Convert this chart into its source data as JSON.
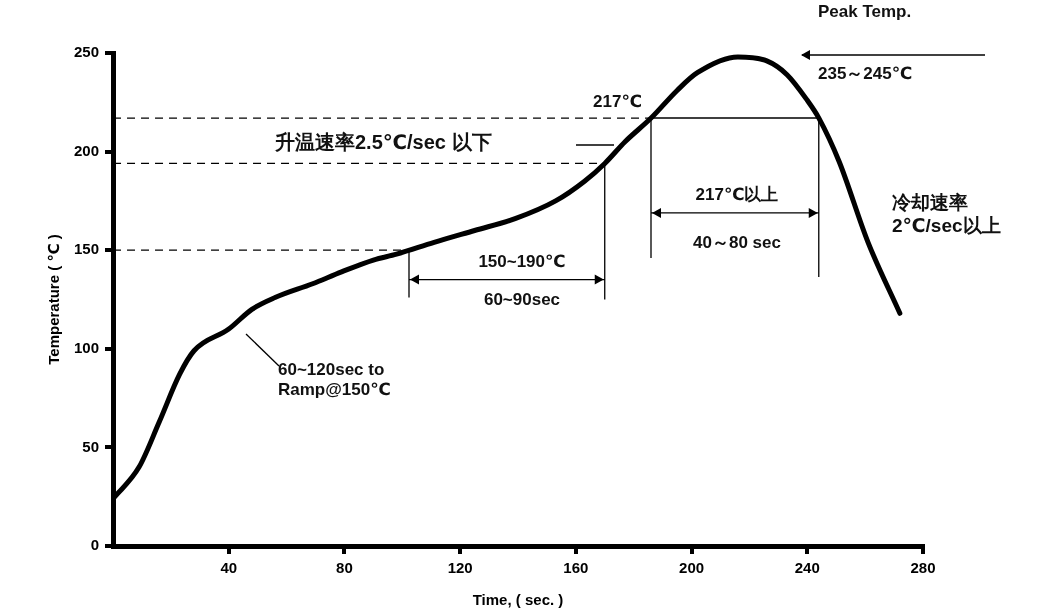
{
  "chart_data": {
    "type": "line",
    "xlabel": "Time, ( sec. )",
    "ylabel": "Temperature ( ℃ )",
    "x": [
      0,
      9,
      16,
      23,
      28,
      40,
      48,
      56,
      69,
      79,
      90,
      98,
      111,
      125,
      139,
      153,
      163,
      170,
      177,
      186,
      195,
      202,
      216,
      226,
      233,
      240,
      244,
      251,
      261,
      272
    ],
    "values": [
      24,
      40,
      63,
      87,
      99,
      110,
      120,
      126,
      133,
      139,
      145,
      148,
      154,
      160,
      166,
      175,
      185,
      194,
      205,
      217,
      231,
      240,
      248,
      246,
      239,
      226,
      217,
      195,
      154,
      118
    ],
    "color": "#000000",
    "xlim": [
      0,
      280
    ],
    "xticks": [
      40,
      80,
      120,
      160,
      200,
      240,
      280
    ],
    "ylim": [
      0,
      250
    ],
    "yticks": [
      0,
      50,
      100,
      150,
      200,
      250
    ],
    "grid": false,
    "legend": false,
    "marker": "none",
    "line_style": "solid",
    "ref_lines": [
      {
        "axis": "y",
        "value": 217,
        "label": "217℃",
        "line_style": "dashed"
      },
      {
        "axis": "y",
        "value": 194,
        "line_style": "dashed"
      },
      {
        "axis": "y",
        "value": 150,
        "line_style": "dashed"
      }
    ],
    "annotations": [
      "升温速率2.5℃/sec 以下",
      "150~190℃",
      "60~90sec",
      "217℃以上",
      "40～80 sec",
      "Peak Temp.",
      "235～245℃",
      "冷却速率\n2℃/sec以上",
      "60~120sec to\nRamp@150℃"
    ]
  }
}
